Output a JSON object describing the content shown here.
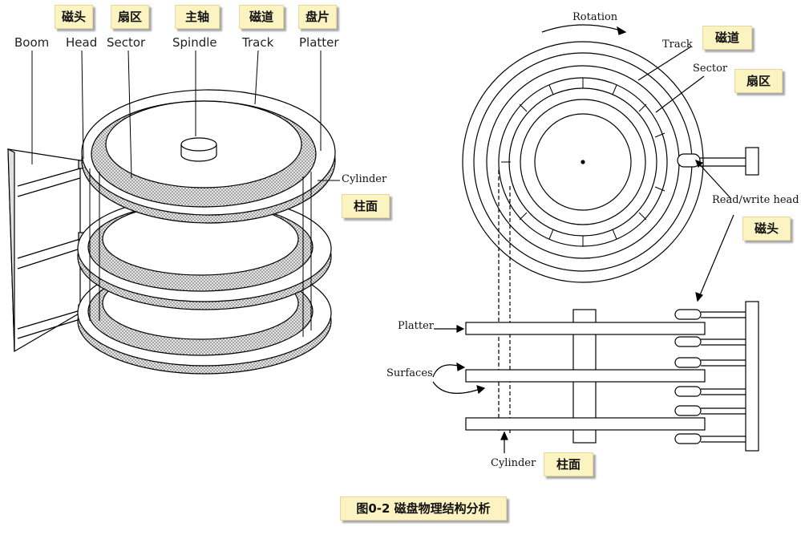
{
  "left": {
    "labels": {
      "boom": "Boom",
      "head": "Head",
      "sector": "Sector",
      "spindle": "Spindle",
      "track": "Track",
      "platter": "Platter",
      "cylinder": "Cylinder"
    },
    "cn": {
      "head": "磁头",
      "sector": "扇区",
      "spindle": "主轴",
      "track": "磁道",
      "platter": "盘片",
      "cylinder": "柱面"
    }
  },
  "right": {
    "labels": {
      "rotation": "Rotation",
      "track": "Track",
      "sector": "Sector",
      "rw_head": "Read/write head",
      "platter": "Platter",
      "surfaces": "Surfaces",
      "cylinder": "Cylinder"
    },
    "cn": {
      "track": "磁道",
      "sector": "扇区",
      "rw_head": "磁头",
      "cylinder": "柱面"
    }
  },
  "caption": "图0-2 磁盘物理结构分析",
  "colors": {
    "tag_bg": "#fbf3c2",
    "line": "#000000",
    "dotted_fill": "#c8c8c8"
  }
}
